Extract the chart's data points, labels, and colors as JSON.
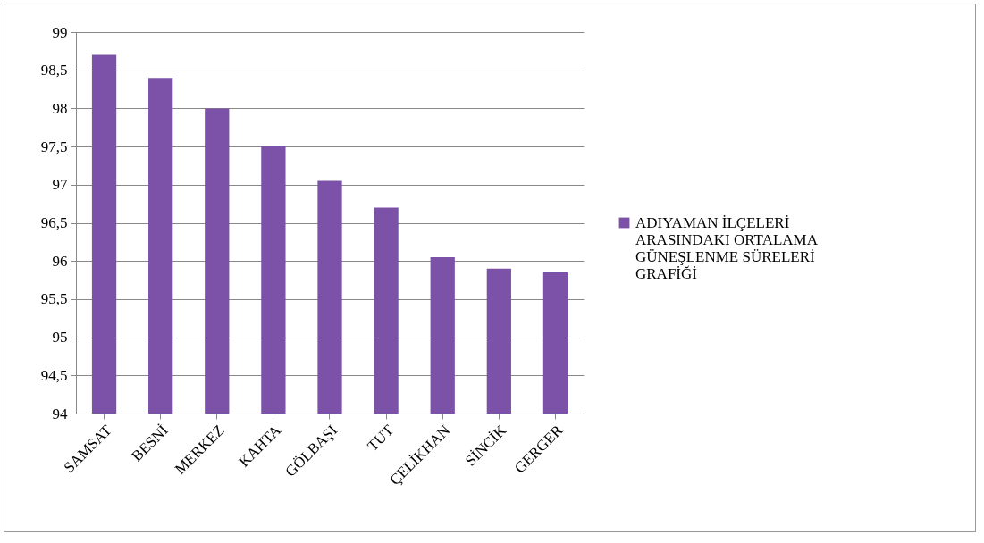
{
  "chart_data": {
    "type": "bar",
    "categories": [
      "SAMSAT",
      "BESNİ",
      "MERKEZ",
      "KAHTA",
      "GÖLBAŞI",
      "TUT",
      "ÇELİKHAN",
      "SİNCİK",
      "GERGER"
    ],
    "series": [
      {
        "name": "ADIYAMAN İLÇELERİ ARASINDAKI ORTALAMA GÜNEŞLENME SÜRELERİ GRAFİĞİ",
        "color": "#7b52a8",
        "values": [
          98.7,
          98.4,
          98.0,
          97.5,
          97.05,
          96.7,
          96.05,
          95.9,
          95.85
        ]
      }
    ],
    "ylim": [
      94,
      99
    ],
    "yticks": [
      94,
      {
        "value": 94.5,
        "label": "94,5"
      },
      95,
      {
        "value": 95.5,
        "label": "95,5"
      },
      96,
      {
        "value": 96.5,
        "label": "96,5"
      },
      97,
      {
        "value": 97.5,
        "label": "97,5"
      },
      98,
      {
        "value": 98.5,
        "label": "98,5"
      },
      99
    ],
    "grid": "y",
    "legend": "right"
  }
}
